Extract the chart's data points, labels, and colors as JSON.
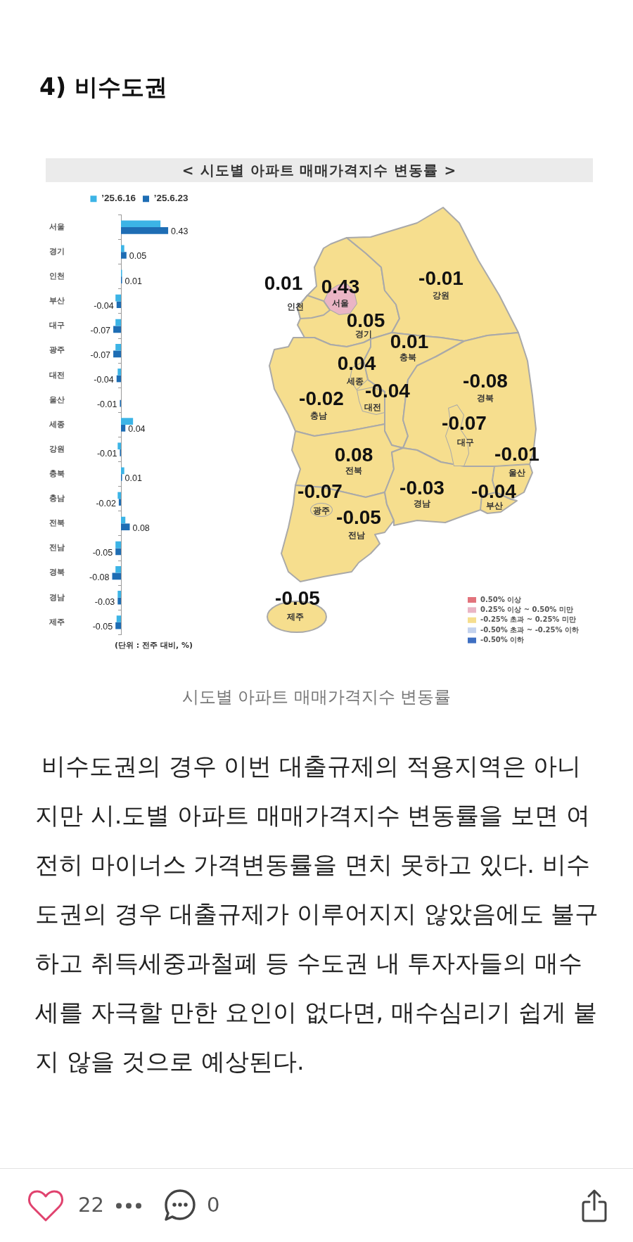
{
  "chart_data": [
    {
      "type": "other",
      "title": "4) 비수도권",
      "subtitle": "< 시도별 아파트 매매가격지수 변동률 >"
    },
    {
      "type": "bar",
      "orientation": "horizontal",
      "categories": [
        "서울",
        "경기",
        "인천",
        "부산",
        "대구",
        "광주",
        "대전",
        "울산",
        "세종",
        "강원",
        "충북",
        "충남",
        "전북",
        "전남",
        "경북",
        "경남",
        "제주"
      ],
      "series": [
        {
          "name": "’25.6.16",
          "color": "#3cb4e6",
          "values": [
            0.36,
            0.03,
            0.01,
            -0.05,
            -0.05,
            -0.05,
            -0.03,
            0,
            0.11,
            -0.03,
            0.03,
            -0.03,
            0.04,
            -0.05,
            -0.05,
            -0.03,
            -0.04
          ]
        },
        {
          "name": "’25.6.23",
          "color": "#1e6db4",
          "values": [
            0.43,
            0.05,
            0.01,
            -0.04,
            -0.07,
            -0.07,
            -0.04,
            -0.01,
            0.04,
            -0.01,
            0.01,
            -0.02,
            0.08,
            -0.05,
            -0.08,
            -0.03,
            -0.05
          ],
          "value_labels": [
            "0.43",
            "0.05",
            "0.01",
            "-0.04",
            "-0.07",
            "-0.07",
            "-0.04",
            "-0.01",
            "0.04",
            "-0.01",
            "0.01",
            "-0.02",
            "0.08",
            "-0.05",
            "-0.08",
            "-0.03",
            "-0.05"
          ]
        }
      ],
      "legend": "top",
      "tick_labels": "y",
      "annotations": [
        "(단위 : 전주 대비, %)"
      ]
    },
    {
      "type": "other",
      "categories": [
        "서울",
        "경기",
        "인천",
        "부산",
        "대구",
        "광주",
        "대전",
        "울산",
        "세종",
        "강원",
        "충북",
        "충남",
        "전북",
        "전남",
        "경북",
        "경남",
        "제주"
      ],
      "series": [
        {
          "name": "0.50% 이상",
          "color": "#e2737c",
          "values": [
            null,
            null,
            null,
            null,
            null,
            null,
            null,
            null,
            null,
            null,
            null,
            null,
            null,
            null,
            null,
            null,
            null
          ]
        },
        {
          "name": "0.25% 이상 ~ 0.50% 미만",
          "color": "#eab5c5",
          "values": [
            0.43,
            null,
            null,
            null,
            null,
            null,
            null,
            null,
            null,
            null,
            null,
            null,
            null,
            null,
            null,
            null,
            null
          ]
        },
        {
          "name": "-0.25% 초과 ~ 0.25% 미만",
          "color": "#f6de8e",
          "values": [
            null,
            0.05,
            0.01,
            -0.04,
            -0.07,
            -0.07,
            -0.04,
            -0.01,
            0.04,
            -0.01,
            0.01,
            -0.02,
            0.08,
            -0.05,
            -0.08,
            -0.03,
            -0.05
          ]
        },
        {
          "name": "-0.50% 초과 ~ -0.25% 이하",
          "color": "#c3d2ee",
          "values": [
            null,
            null,
            null,
            null,
            null,
            null,
            null,
            null,
            null,
            null,
            null,
            null,
            null,
            null,
            null,
            null,
            null
          ]
        },
        {
          "name": "-0.50% 이하",
          "color": "#3e6fc2",
          "values": [
            null,
            null,
            null,
            null,
            null,
            null,
            null,
            null,
            null,
            null,
            null,
            null,
            null,
            null,
            null,
            null,
            null
          ]
        }
      ],
      "data_labels": true,
      "legend": "bottom right"
    },
    {
      "type": "other",
      "annotations": [
        "시도별 아파트 매매가격지수 변동률",
        "비수도권의 경우 이번 대출규제의 적용지역은 아니지만 시.도별 아파트 매매가격지수 변동률을 보면 여전히 마이너스 가격변동률을 면치 못하고 있다. 비수도권의 경우 대출규제가 이루어지지 않았음에도 불구하고 취득세중과철폐 등 수도권 내 투자자들의 매수세를 자극할 만한 요인이 없다면, 매수심리기 쉽게 붙지 않을 것으로 예상된다.",
        "22",
        "0"
      ]
    }
  ]
}
